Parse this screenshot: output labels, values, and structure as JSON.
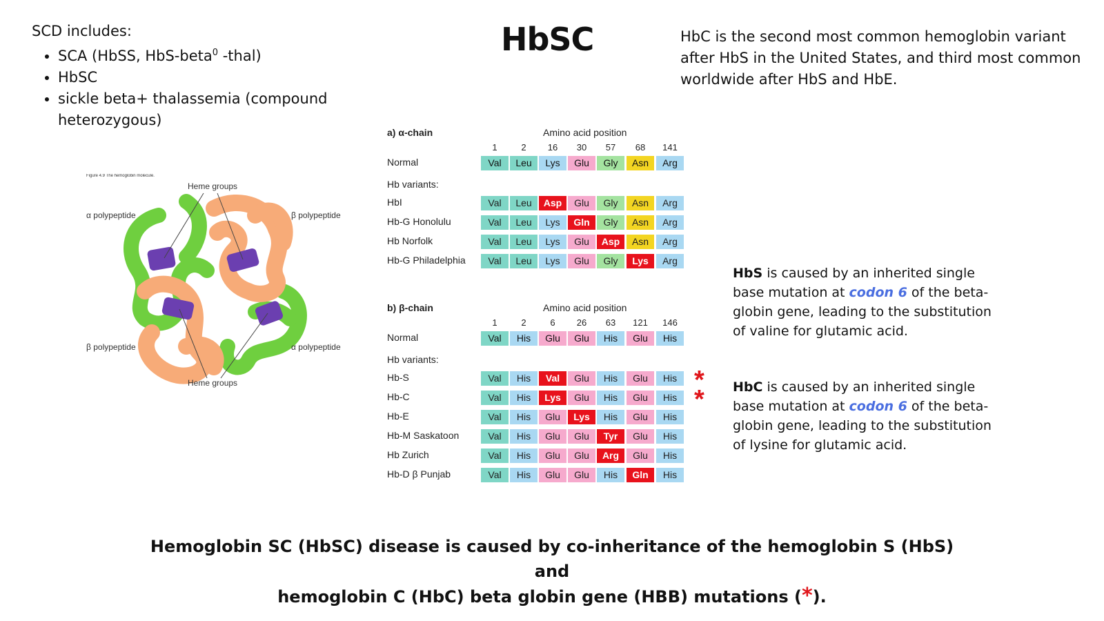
{
  "title": "HbSC",
  "scd": {
    "heading": "SCD includes:",
    "items": [
      {
        "pre": "SCA (HbSS, HbS-beta",
        "sup": "0",
        "post": " -thal)"
      },
      {
        "pre": "HbSC",
        "sup": "",
        "post": ""
      },
      {
        "pre": "sickle beta+ thalassemia (compound heterozygous)",
        "sup": "",
        "post": ""
      }
    ]
  },
  "hbc_intro": "HbC is the second most common hemoglobin variant after HbS in the United States, and third most common worldwide after HbS and HbE.",
  "figure": {
    "caption": "Figure 4.9 The hemoglobin molecule.",
    "labels": {
      "heme_top": "Heme groups",
      "heme_bottom": "Heme groups",
      "alpha_left": "α polypeptide",
      "beta_right": "β polypeptide",
      "beta_left": "β polypeptide",
      "alpha_right": "α polypeptide"
    }
  },
  "alpha": {
    "title": "a) α-chain",
    "pos_label": "Amino acid position",
    "positions": [
      "1",
      "2",
      "16",
      "30",
      "57",
      "68",
      "141"
    ],
    "normal_label": "Normal",
    "normal": [
      "Val",
      "Leu",
      "Lys",
      "Glu",
      "Gly",
      "Asn",
      "Arg"
    ],
    "variants_label": "Hb variants:",
    "variants": [
      {
        "name": "HbI",
        "aa": [
          "Val",
          "Leu",
          "Asp",
          "Glu",
          "Gly",
          "Asn",
          "Arg"
        ],
        "mut": 2
      },
      {
        "name": "Hb-G Honolulu",
        "aa": [
          "Val",
          "Leu",
          "Lys",
          "Gln",
          "Gly",
          "Asn",
          "Arg"
        ],
        "mut": 3
      },
      {
        "name": "Hb Norfolk",
        "aa": [
          "Val",
          "Leu",
          "Lys",
          "Glu",
          "Asp",
          "Asn",
          "Arg"
        ],
        "mut": 4
      },
      {
        "name": "Hb-G Philadelphia",
        "aa": [
          "Val",
          "Leu",
          "Lys",
          "Glu",
          "Gly",
          "Lys",
          "Arg"
        ],
        "mut": 5
      }
    ]
  },
  "beta": {
    "title": "b) β-chain",
    "pos_label": "Amino acid position",
    "positions": [
      "1",
      "2",
      "6",
      "26",
      "63",
      "121",
      "146"
    ],
    "normal_label": "Normal",
    "normal": [
      "Val",
      "His",
      "Glu",
      "Glu",
      "His",
      "Glu",
      "His"
    ],
    "variants_label": "Hb variants:",
    "variants": [
      {
        "name": "Hb-S",
        "aa": [
          "Val",
          "His",
          "Val",
          "Glu",
          "His",
          "Glu",
          "His"
        ],
        "mut": 2,
        "star": "*"
      },
      {
        "name": "Hb-C",
        "aa": [
          "Val",
          "His",
          "Lys",
          "Glu",
          "His",
          "Glu",
          "His"
        ],
        "mut": 2,
        "star": "*"
      },
      {
        "name": "Hb-E",
        "aa": [
          "Val",
          "His",
          "Glu",
          "Lys",
          "His",
          "Glu",
          "His"
        ],
        "mut": 3
      },
      {
        "name": "Hb-M Saskatoon",
        "aa": [
          "Val",
          "His",
          "Glu",
          "Glu",
          "Tyr",
          "Glu",
          "His"
        ],
        "mut": 4
      },
      {
        "name": "Hb Zurich",
        "aa": [
          "Val",
          "His",
          "Glu",
          "Glu",
          "Arg",
          "Glu",
          "His"
        ],
        "mut": 4
      },
      {
        "name": "Hb-D β Punjab",
        "aa": [
          "Val",
          "His",
          "Glu",
          "Glu",
          "His",
          "Gln",
          "His"
        ],
        "mut": 5
      }
    ]
  },
  "colors": {
    "Val": "#7fd6c6",
    "Leu": "#7fd6c6",
    "Lys": "#a9d8f2",
    "Glu": "#f6aacd",
    "Gly": "#a4e3a0",
    "Asn": "#f3d522",
    "Arg": "#a9d8f2",
    "His": "#a9d8f2",
    "mutation": "#e8121c",
    "accent": "#e0161b",
    "codon": "#4a6ee0"
  },
  "notes": {
    "hbs": {
      "bold": "HbS",
      "pre": " is caused by an inherited single base mutation at ",
      "codon": "codon 6",
      "post": " of the beta-globin gene, leading to the substitution of valine for glutamic acid."
    },
    "hbc": {
      "bold": "HbC",
      "pre": " is caused by an inherited single base mutation at ",
      "codon": "codon 6",
      "post": " of the beta-globin gene, leading to the substitution of lysine for glutamic acid."
    }
  },
  "bottom": {
    "line1": "Hemoglobin SC (HbSC) disease is caused by co-inheritance of the hemoglobin S (HbS) and",
    "line2_pre": "hemoglobin C (HbC) beta globin gene (HBB) mutations (",
    "star": "*",
    "line2_post": ")."
  }
}
